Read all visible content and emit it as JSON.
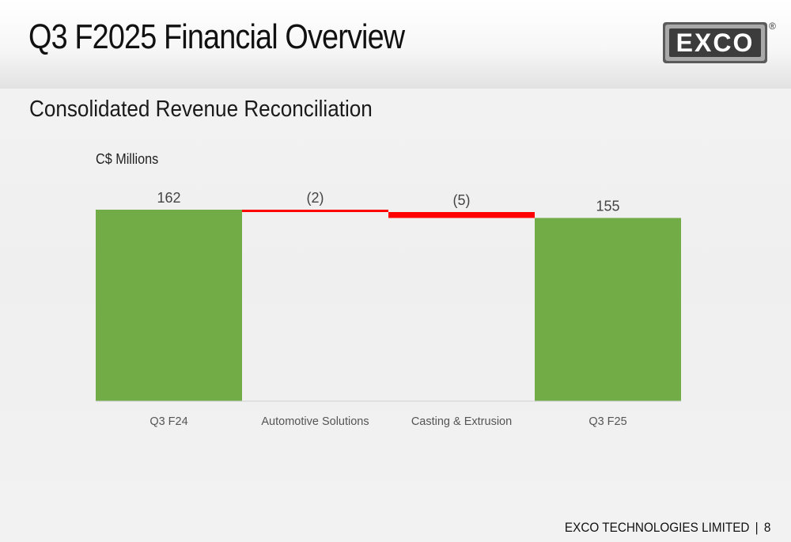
{
  "slide": {
    "title": "Q3 F2025 Financial Overview",
    "subtitle": "Consolidated Revenue Reconciliation",
    "unit_label": "C$ Millions"
  },
  "logo": {
    "text": "EXCO",
    "registered": "®"
  },
  "footer": {
    "company": "EXCO TECHNOLOGIES LIMITED",
    "separator": "|",
    "page_number": "8"
  },
  "colors": {
    "total_bar": "#71ac47",
    "decrease_bar": "#ff0000",
    "axis_label": "#555555",
    "data_label": "#444444"
  },
  "chart_data": {
    "type": "bar",
    "subtype": "waterfall",
    "title": "",
    "xlabel": "",
    "ylabel": "C$ Millions",
    "categories": [
      "Q3 F24",
      "Automotive Solutions",
      "Casting & Extrusion",
      "Q3 F25"
    ],
    "values": [
      162,
      -2,
      -5,
      155
    ],
    "kinds": [
      "total",
      "delta",
      "delta",
      "total"
    ],
    "data_labels": [
      "162",
      "(2)",
      "(5)",
      "155"
    ],
    "ylim": [
      0,
      162
    ],
    "grid": false,
    "legend": "none"
  }
}
